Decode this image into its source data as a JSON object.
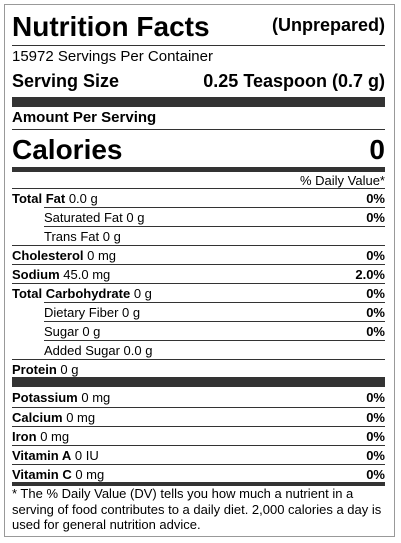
{
  "header": {
    "title": "Nutrition Facts",
    "preparation": "(Unprepared)"
  },
  "servings": "15972 Servings Per Container",
  "serving_size": {
    "label": "Serving Size",
    "value": "0.25 Teaspoon (0.7 g)"
  },
  "amount_per_serving": "Amount Per Serving",
  "calories": {
    "label": "Calories",
    "value": "0"
  },
  "daily_value_header": "% Daily Value*",
  "nutrients": [
    {
      "name": "Total Fat",
      "amount": "0.0 g",
      "dv": "0%"
    },
    {
      "name": "Saturated Fat",
      "amount": "0 g",
      "dv": "0%"
    },
    {
      "name": "Trans Fat",
      "amount": "0 g"
    },
    {
      "name": "Cholesterol",
      "amount": "0 mg",
      "dv": "0%"
    },
    {
      "name": "Sodium",
      "amount": "45.0 mg",
      "dv": "2.0%"
    },
    {
      "name": "Total Carbohydrate",
      "amount": "0 g",
      "dv": "0%"
    },
    {
      "name": "Dietary Fiber",
      "amount": "0 g",
      "dv": "0%"
    },
    {
      "name": "Sugar",
      "amount": "0 g",
      "dv": "0%"
    },
    {
      "name": "Added Sugar",
      "amount": "0.0 g"
    },
    {
      "name": "Protein",
      "amount": "0 g"
    }
  ],
  "minerals": [
    {
      "name": "Potassium",
      "amount": "0 mg",
      "dv": "0%"
    },
    {
      "name": "Calcium",
      "amount": "0 mg",
      "dv": "0%"
    },
    {
      "name": "Iron",
      "amount": "0 mg",
      "dv": "0%"
    },
    {
      "name": "Vitamin A",
      "amount": "0 IU",
      "dv": "0%"
    },
    {
      "name": "Vitamin C",
      "amount": "0 mg",
      "dv": "0%"
    }
  ],
  "footnote": "* The % Daily Value (DV) tells you how much a nutrient in a serving of food contributes to a daily diet. 2,000 calories a day is used for general nutrition advice."
}
